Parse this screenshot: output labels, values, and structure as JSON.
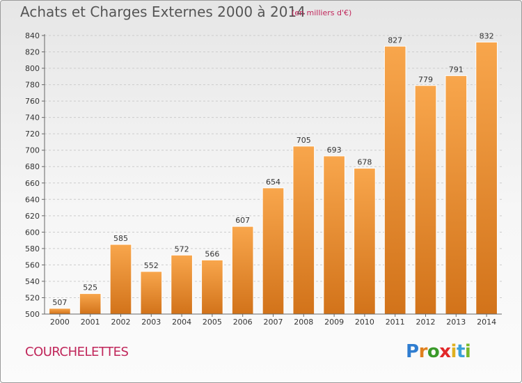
{
  "title": "Achats et Charges Externes 2000 à 2014",
  "subtitle": "(en milliers d'€)",
  "place_label": "COURCHELETTES",
  "logo_letters": [
    "P",
    "r",
    "o",
    "x",
    "i",
    "t",
    "i"
  ],
  "colors": {
    "bar_light": "#f8a64c",
    "bar_dark": "#d2731a",
    "title": "#555555",
    "accent": "#c0265a",
    "grid": "#cccccc",
    "axis_text": "#333333"
  },
  "chart_data": {
    "type": "bar",
    "title": "Achats et Charges Externes 2000 à 2014",
    "subtitle": "(en milliers d'€)",
    "xlabel": "",
    "ylabel": "",
    "categories": [
      "2000",
      "2001",
      "2002",
      "2003",
      "2004",
      "2005",
      "2006",
      "2007",
      "2008",
      "2009",
      "2010",
      "2011",
      "2012",
      "2013",
      "2014"
    ],
    "values": [
      507,
      525,
      585,
      552,
      572,
      566,
      607,
      654,
      705,
      693,
      678,
      827,
      779,
      791,
      832
    ],
    "ylim": [
      500,
      840
    ],
    "yticks": [
      500,
      520,
      540,
      560,
      580,
      600,
      620,
      640,
      660,
      680,
      700,
      720,
      740,
      760,
      780,
      800,
      820,
      840
    ],
    "grid": "horizontal dashed",
    "legend": "none",
    "data_labels": true
  }
}
